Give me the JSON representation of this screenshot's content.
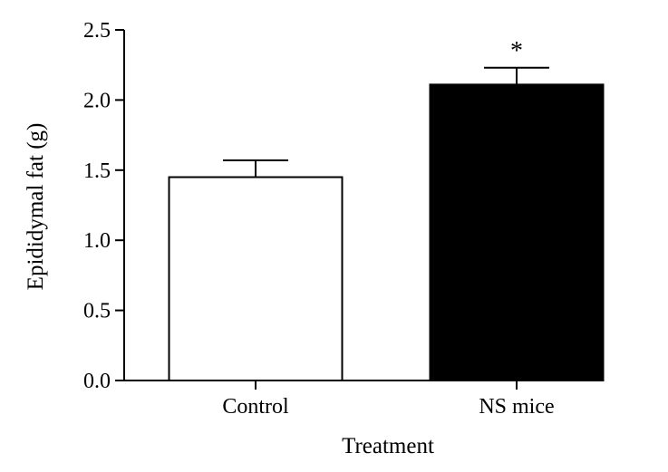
{
  "chart_data": {
    "type": "bar",
    "categories": [
      "Control",
      "NS mice"
    ],
    "values": [
      1.45,
      2.11
    ],
    "errors": [
      0.12,
      0.12
    ],
    "bar_colors": [
      "#ffffff",
      "#000000"
    ],
    "annotations": [
      "",
      "*"
    ],
    "xlabel": "Treatment",
    "ylabel": "Epididymal fat (g)",
    "ylim": [
      0,
      2.5
    ],
    "yticks": [
      "0.0",
      "0.5",
      "1.0",
      "1.5",
      "2.0",
      "2.5"
    ],
    "grid": false
  }
}
